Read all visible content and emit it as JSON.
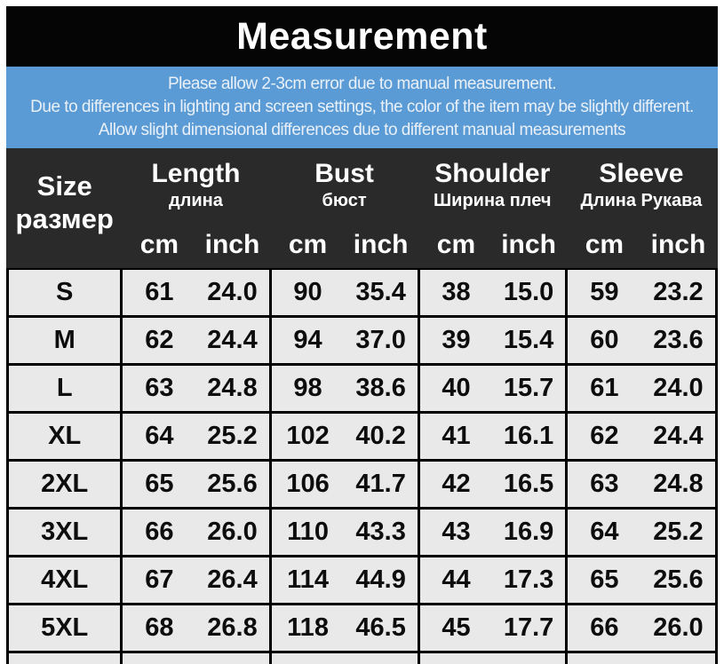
{
  "title": "Measurement",
  "banner": {
    "bg_color": "#5b9bd5",
    "lines": [
      "Please allow 2-3cm error due to manual measurement.",
      "Due to differences in lighting and screen settings, the color of the item may be slightly different.",
      "Allow slight dimensional differences due to different manual measurements"
    ]
  },
  "table": {
    "size_header": {
      "en": "Size",
      "ru": "размер"
    },
    "units": {
      "cm": "cm",
      "inch": "inch"
    },
    "groups": [
      {
        "en": "Length",
        "ru": "длина"
      },
      {
        "en": "Bust",
        "ru": "бюст"
      },
      {
        "en": "Shoulder",
        "ru": "Ширина плеч"
      },
      {
        "en": "Sleeve",
        "ru": "Длина Рукава"
      }
    ],
    "rows": [
      {
        "size": "S",
        "values": [
          "61",
          "24.0",
          "90",
          "35.4",
          "38",
          "15.0",
          "59",
          "23.2"
        ]
      },
      {
        "size": "M",
        "values": [
          "62",
          "24.4",
          "94",
          "37.0",
          "39",
          "15.4",
          "60",
          "23.6"
        ]
      },
      {
        "size": "L",
        "values": [
          "63",
          "24.8",
          "98",
          "38.6",
          "40",
          "15.7",
          "61",
          "24.0"
        ]
      },
      {
        "size": "XL",
        "values": [
          "64",
          "25.2",
          "102",
          "40.2",
          "41",
          "16.1",
          "62",
          "24.4"
        ]
      },
      {
        "size": "2XL",
        "values": [
          "65",
          "25.6",
          "106",
          "41.7",
          "42",
          "16.5",
          "63",
          "24.8"
        ]
      },
      {
        "size": "3XL",
        "values": [
          "66",
          "26.0",
          "110",
          "43.3",
          "43",
          "16.9",
          "64",
          "25.2"
        ]
      },
      {
        "size": "4XL",
        "values": [
          "67",
          "26.4",
          "114",
          "44.9",
          "44",
          "17.3",
          "65",
          "25.6"
        ]
      },
      {
        "size": "5XL",
        "values": [
          "68",
          "26.8",
          "118",
          "46.5",
          "45",
          "17.7",
          "66",
          "26.0"
        ]
      }
    ],
    "colors": {
      "title_bar_bg": "#050505",
      "banner_bg": "#5b9bd5",
      "header_bg": "#2a2a2a",
      "row_bg": "#e9e9e9",
      "border": "#000000"
    }
  }
}
